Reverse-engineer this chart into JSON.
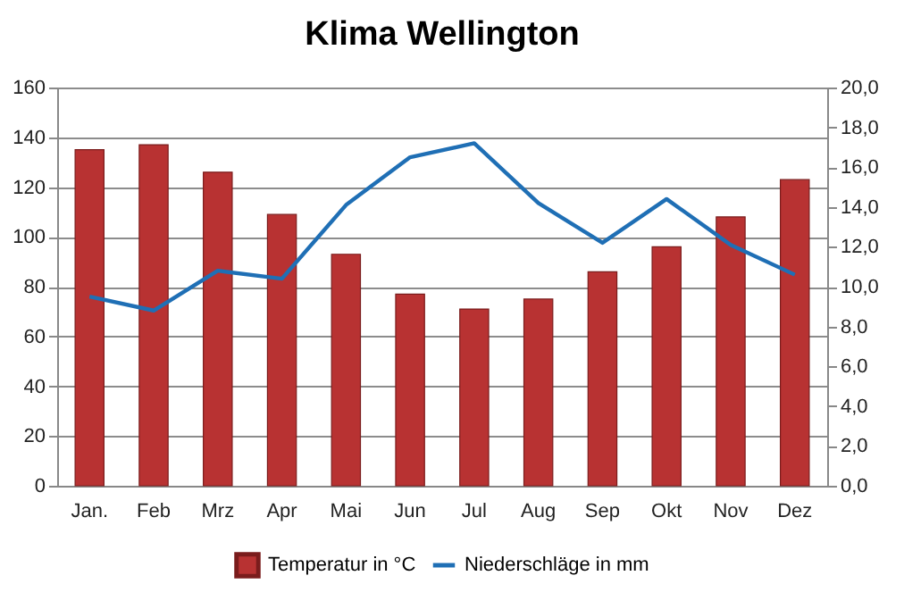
{
  "chart_data": {
    "type": "bar",
    "title": "Klima Wellington",
    "categories": [
      "Jan.",
      "Feb",
      "Mrz",
      "Apr",
      "Mai",
      "Jun",
      "Jul",
      "Aug",
      "Sep",
      "Okt",
      "Nov",
      "Dez"
    ],
    "series": [
      {
        "name": "Temperatur in °C",
        "color": "#b83232",
        "values": [
          135,
          137,
          126,
          109,
          93,
          77,
          71,
          75,
          86,
          96,
          108,
          123
        ]
      },
      {
        "name": "Niederschläge in mm",
        "type": "line",
        "axis": "y2",
        "color": "#1f6fb5",
        "values": [
          9.5,
          8.8,
          10.8,
          10.4,
          14.1,
          16.5,
          17.2,
          14.2,
          12.2,
          14.4,
          12.1,
          10.6
        ]
      }
    ],
    "ylim": [
      0,
      160
    ],
    "yticks": [
      0,
      20,
      40,
      60,
      80,
      100,
      120,
      140,
      160
    ],
    "y2lim": [
      0,
      20
    ],
    "y2ticks": [
      {
        "value": 0,
        "label": "0,0"
      },
      {
        "value": 2,
        "label": "2,0"
      },
      {
        "value": 4,
        "label": "4,0"
      },
      {
        "value": 6,
        "label": "6,0"
      },
      {
        "value": 8,
        "label": "8,0"
      },
      {
        "value": 10,
        "label": "10,0"
      },
      {
        "value": 12,
        "label": "12,0"
      },
      {
        "value": 14,
        "label": "14,0"
      },
      {
        "value": 16,
        "label": "16,0"
      },
      {
        "value": 18,
        "label": "18,0"
      },
      {
        "value": 20,
        "label": "20,0"
      }
    ],
    "grid": "y",
    "legend": "bottom",
    "marker": "none",
    "line_style": "solid"
  }
}
